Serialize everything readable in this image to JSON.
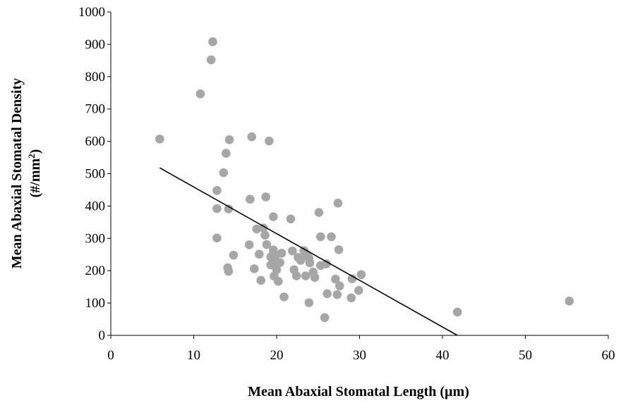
{
  "chart_data": {
    "type": "scatter",
    "title": "",
    "xlabel": "Mean Abaxial Stomatal Length (µm)",
    "ylabel_line1": "Mean Abaxial Stomatal Density",
    "ylabel_line2_prefix": "(#/mm",
    "ylabel_line2_sup": "2",
    "ylabel_line2_suffix": ")",
    "xlim": [
      0,
      60
    ],
    "ylim": [
      0,
      1000
    ],
    "xticks": [
      0,
      10,
      20,
      30,
      40,
      50,
      60
    ],
    "yticks": [
      0,
      100,
      200,
      300,
      400,
      500,
      600,
      700,
      800,
      900,
      1000
    ],
    "grid": false,
    "marker_color": "#a6a6a6",
    "trendline": {
      "x": [
        5.9,
        41.8
      ],
      "y": [
        518,
        0
      ],
      "color": "#000000"
    },
    "series": [
      {
        "points": [
          [
            5.9,
            607
          ],
          [
            10.8,
            747
          ],
          [
            12.1,
            852
          ],
          [
            12.3,
            908
          ],
          [
            12.8,
            448
          ],
          [
            12.8,
            392
          ],
          [
            12.8,
            301
          ],
          [
            13.6,
            503
          ],
          [
            13.9,
            563
          ],
          [
            14.1,
            209
          ],
          [
            14.2,
            198
          ],
          [
            14.2,
            391
          ],
          [
            14.3,
            605
          ],
          [
            14.8,
            248
          ],
          [
            16.7,
            280
          ],
          [
            16.8,
            421
          ],
          [
            17.0,
            614
          ],
          [
            17.3,
            206
          ],
          [
            17.6,
            329
          ],
          [
            17.9,
            251
          ],
          [
            18.1,
            170
          ],
          [
            18.4,
            332
          ],
          [
            18.6,
            310
          ],
          [
            18.7,
            428
          ],
          [
            18.8,
            281
          ],
          [
            19.1,
            601
          ],
          [
            19.3,
            218
          ],
          [
            19.3,
            243
          ],
          [
            19.6,
            367
          ],
          [
            19.6,
            264
          ],
          [
            19.7,
            183
          ],
          [
            19.8,
            228
          ],
          [
            19.9,
            248
          ],
          [
            20.0,
            203
          ],
          [
            20.2,
            167
          ],
          [
            20.4,
            225
          ],
          [
            20.6,
            254
          ],
          [
            20.9,
            119
          ],
          [
            21.7,
            360
          ],
          [
            21.9,
            261
          ],
          [
            22.1,
            203
          ],
          [
            22.4,
            184
          ],
          [
            22.6,
            241
          ],
          [
            22.9,
            232
          ],
          [
            23.3,
            262
          ],
          [
            23.5,
            184
          ],
          [
            23.6,
            250
          ],
          [
            23.9,
            101
          ],
          [
            23.9,
            239
          ],
          [
            24.0,
            224
          ],
          [
            24.4,
            196
          ],
          [
            24.6,
            179
          ],
          [
            25.1,
            380
          ],
          [
            25.3,
            305
          ],
          [
            25.3,
            216
          ],
          [
            25.8,
            55
          ],
          [
            26.0,
            221
          ],
          [
            26.1,
            129
          ],
          [
            26.6,
            305
          ],
          [
            27.1,
            174
          ],
          [
            27.3,
            126
          ],
          [
            27.4,
            409
          ],
          [
            27.5,
            265
          ],
          [
            27.6,
            153
          ],
          [
            29.0,
            116
          ],
          [
            29.1,
            175
          ],
          [
            29.9,
            139
          ],
          [
            30.2,
            188
          ],
          [
            41.8,
            72
          ],
          [
            55.3,
            106
          ]
        ]
      }
    ]
  }
}
